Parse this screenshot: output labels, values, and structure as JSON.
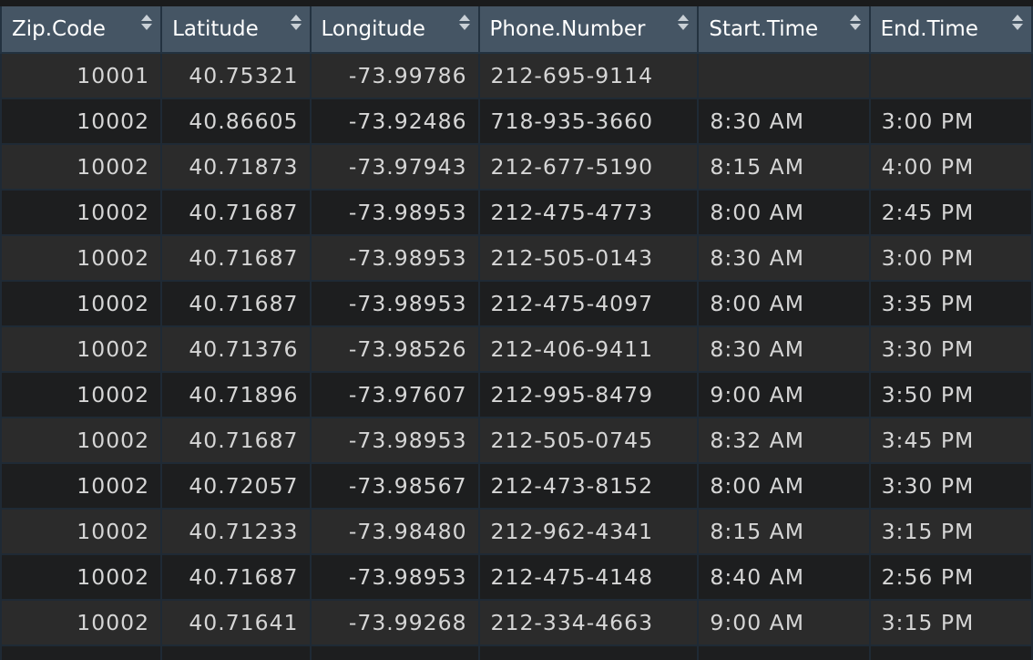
{
  "table": {
    "columns": [
      {
        "label": "Zip.Code",
        "align": "right"
      },
      {
        "label": "Latitude",
        "align": "right"
      },
      {
        "label": "Longitude",
        "align": "right"
      },
      {
        "label": "Phone.Number",
        "align": "left"
      },
      {
        "label": "Start.Time",
        "align": "left"
      },
      {
        "label": "End.Time",
        "align": "left"
      }
    ],
    "rows": [
      [
        "10001",
        "40.75321",
        "-73.99786",
        "212-695-9114",
        "",
        ""
      ],
      [
        "10002",
        "40.86605",
        "-73.92486",
        "718-935-3660",
        "8:30 AM",
        "3:00 PM"
      ],
      [
        "10002",
        "40.71873",
        "-73.97943",
        "212-677-5190",
        "8:15 AM",
        "4:00 PM"
      ],
      [
        "10002",
        "40.71687",
        "-73.98953",
        "212-475-4773",
        "8:00 AM",
        "2:45 PM"
      ],
      [
        "10002",
        "40.71687",
        "-73.98953",
        "212-505-0143",
        "8:30 AM",
        "3:00 PM"
      ],
      [
        "10002",
        "40.71687",
        "-73.98953",
        "212-475-4097",
        "8:00 AM",
        "3:35 PM"
      ],
      [
        "10002",
        "40.71376",
        "-73.98526",
        "212-406-9411",
        "8:30 AM",
        "3:30 PM"
      ],
      [
        "10002",
        "40.71896",
        "-73.97607",
        "212-995-8479",
        "9:00 AM",
        "3:50 PM"
      ],
      [
        "10002",
        "40.71687",
        "-73.98953",
        "212-505-0745",
        "8:32 AM",
        "3:45 PM"
      ],
      [
        "10002",
        "40.72057",
        "-73.98567",
        "212-473-8152",
        "8:00 AM",
        "3:30 PM"
      ],
      [
        "10002",
        "40.71233",
        "-73.98480",
        "212-962-4341",
        "8:15 AM",
        "3:15 PM"
      ],
      [
        "10002",
        "40.71687",
        "-73.98953",
        "212-475-4148",
        "8:40 AM",
        "2:56 PM"
      ],
      [
        "10002",
        "40.71641",
        "-73.99268",
        "212-334-4663",
        "9:00 AM",
        "3:15 PM"
      ],
      [
        "",
        "",
        "",
        "",
        "",
        ""
      ]
    ]
  },
  "icons": {
    "sort": "sort-updown-icon"
  },
  "colors": {
    "header_bg": "#455564",
    "header_text": "#ffffff",
    "row_odd": "#2b2b2b",
    "row_even": "#1d1e1f",
    "cell_text": "#d6d6d6",
    "grid": "#1f2a35"
  }
}
